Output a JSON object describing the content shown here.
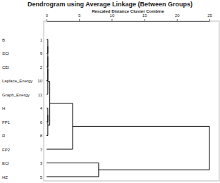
{
  "chart_data": {
    "type": "dendrogram",
    "title": "Dendrogram using Average Linkage (Between Groups)",
    "xlabel": "Rescaled Distance Cluster Combine",
    "categories": [
      "B",
      "SCI",
      "CEI",
      "Laplace_Energy",
      "Graph_Energy",
      "H",
      "FP1",
      "R",
      "FP2",
      "ECI",
      "HZ"
    ],
    "case_numbers": [
      1,
      9,
      2,
      10,
      11,
      4,
      6,
      8,
      7,
      3,
      5
    ],
    "merges": [
      {
        "children": [
          0,
          1
        ],
        "distance": 0.2
      },
      {
        "children": [
          11,
          2
        ],
        "distance": 0.2
      },
      {
        "children": [
          12,
          3
        ],
        "distance": 0.2
      },
      {
        "children": [
          13,
          4
        ],
        "distance": 0.2
      },
      {
        "children": [
          5,
          6
        ],
        "distance": 0.2
      },
      {
        "children": [
          15,
          7
        ],
        "distance": 0.2
      },
      {
        "children": [
          14,
          16
        ],
        "distance": 0.5
      },
      {
        "children": [
          17,
          8
        ],
        "distance": 4
      },
      {
        "children": [
          9,
          10
        ],
        "distance": 8
      },
      {
        "children": [
          18,
          19
        ],
        "distance": 25
      }
    ],
    "xlim": [
      0,
      25
    ],
    "xticks": [
      0,
      5,
      10,
      15,
      20,
      25
    ]
  }
}
